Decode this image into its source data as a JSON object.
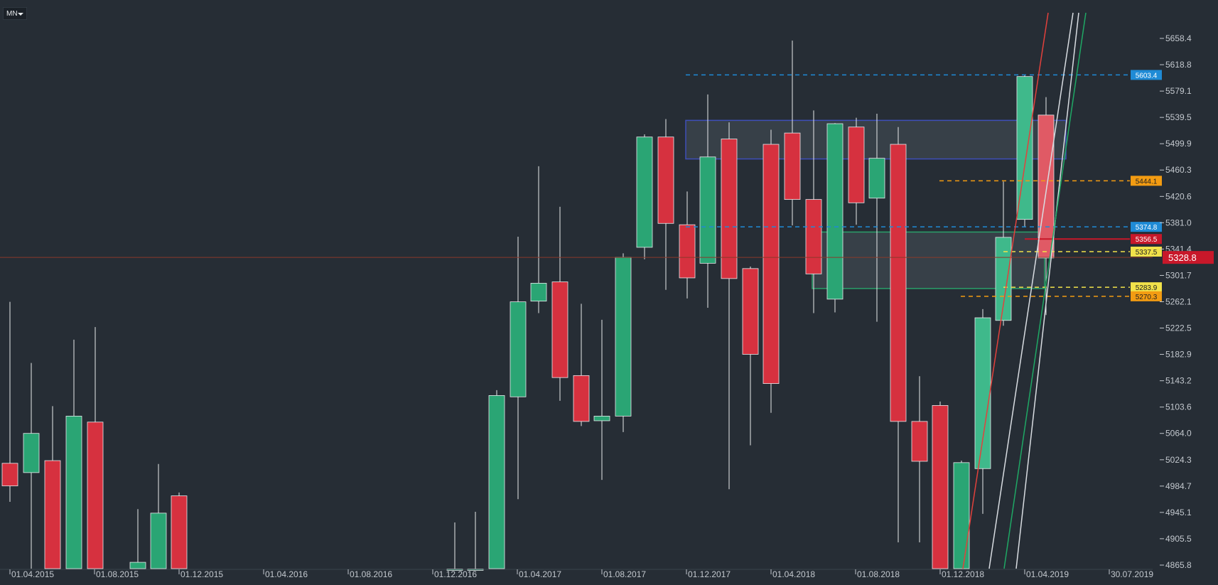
{
  "toolbar": {
    "timeframe": "MN"
  },
  "colors": {
    "background": "#262d35",
    "bull": "#2aa574",
    "bear": "#d6313f",
    "bull_light": "#3fb98b",
    "bear_light": "#e05a65",
    "blue_box": "#3f4fb8",
    "green_box": "#2aa06a",
    "dashed_blue": "#1f8bd6",
    "dashed_orange": "#f39c12",
    "dashed_yellow": "#f1e24a",
    "trend_red": "#e2413c",
    "trend_white": "#d9dde2",
    "trend_green": "#1fa865",
    "current_price": "#c8182a"
  },
  "chart_data": {
    "type": "candlestick",
    "timeframe": "MN",
    "ylim": [
      4865.8,
      5697.9
    ],
    "y_ticks": [
      "5658.4",
      "5618.8",
      "5579.1",
      "5539.5",
      "5499.9",
      "5460.3",
      "5420.6",
      "5381.0",
      "5341.4",
      "5301.7",
      "5262.1",
      "5222.5",
      "5182.9",
      "5143.2",
      "5103.6",
      "5064.0",
      "5024.3",
      "4984.7",
      "4945.1",
      "4905.5",
      "4865.8"
    ],
    "x_labels": [
      "01.04.2015",
      "01.08.2015",
      "01.12.2015",
      "01.04.2016",
      "01.08.2016",
      "01.12.2016",
      "01.04.2017",
      "01.08.2017",
      "01.12.2017",
      "01.04.2018",
      "01.08.2018",
      "01.12.2018",
      "01.04.2019",
      "30.07.2019"
    ],
    "candles": [
      {
        "date": "2015-03",
        "o": 5019,
        "h": 5262,
        "l": 4961,
        "c": 4985
      },
      {
        "date": "2015-04",
        "o": 5005,
        "h": 5170,
        "l": 4860,
        "c": 5064
      },
      {
        "date": "2015-05",
        "o": 5023,
        "h": 5105,
        "l": 4860,
        "c": 4860
      },
      {
        "date": "2015-06",
        "o": 4860,
        "h": 5205,
        "l": 4860,
        "c": 5090
      },
      {
        "date": "2015-07",
        "o": 5081,
        "h": 5224,
        "l": 4860,
        "c": 4860
      },
      {
        "date": "2015-10",
        "o": 4860,
        "h": 4950,
        "l": 4860,
        "c": 4870
      },
      {
        "date": "2015-11",
        "o": 4860,
        "h": 5018,
        "l": 4860,
        "c": 4944
      },
      {
        "date": "2015-12",
        "o": 4970,
        "h": 4975,
        "l": 4860,
        "c": 4860
      },
      {
        "date": "2016-11",
        "o": 4860,
        "h": 4930,
        "l": 4860,
        "c": 4860
      },
      {
        "date": "2016-12",
        "o": 4860,
        "h": 4946,
        "l": 4860,
        "c": 4860
      },
      {
        "date": "2017-01",
        "o": 4860,
        "h": 5129,
        "l": 4860,
        "c": 5121
      },
      {
        "date": "2017-02",
        "o": 5119,
        "h": 5360,
        "l": 4965,
        "c": 5262
      },
      {
        "date": "2017-03",
        "o": 5263,
        "h": 5466,
        "l": 5245,
        "c": 5290
      },
      {
        "date": "2017-04",
        "o": 5292,
        "h": 5405,
        "l": 5113,
        "c": 5148
      },
      {
        "date": "2017-05",
        "o": 5151,
        "h": 5259,
        "l": 5075,
        "c": 5082
      },
      {
        "date": "2017-06",
        "o": 5083,
        "h": 5235,
        "l": 4994,
        "c": 5090
      },
      {
        "date": "2017-07",
        "o": 5090,
        "h": 5335,
        "l": 5066,
        "c": 5329
      },
      {
        "date": "2017-08",
        "o": 5344,
        "h": 5514,
        "l": 5326,
        "c": 5510
      },
      {
        "date": "2017-09",
        "o": 5510,
        "h": 5537,
        "l": 5280,
        "c": 5380
      },
      {
        "date": "2017-10",
        "o": 5378,
        "h": 5428,
        "l": 5267,
        "c": 5298
      },
      {
        "date": "2017-11",
        "o": 5320,
        "h": 5574,
        "l": 5253,
        "c": 5480
      },
      {
        "date": "2017-12",
        "o": 5507,
        "h": 5532,
        "l": 4980,
        "c": 5297
      },
      {
        "date": "2018-01",
        "o": 5312,
        "h": 5315,
        "l": 5046,
        "c": 5183
      },
      {
        "date": "2018-02",
        "o": 5499,
        "h": 5521,
        "l": 5095,
        "c": 5139
      },
      {
        "date": "2018-03",
        "o": 5516,
        "h": 5655,
        "l": 5377,
        "c": 5416
      },
      {
        "date": "2018-04",
        "o": 5416,
        "h": 5550,
        "l": 5245,
        "c": 5304
      },
      {
        "date": "2018-05",
        "o": 5266,
        "h": 5531,
        "l": 5246,
        "c": 5530
      },
      {
        "date": "2018-06",
        "o": 5525,
        "h": 5539,
        "l": 5378,
        "c": 5411
      },
      {
        "date": "2018-07",
        "o": 5418,
        "h": 5545,
        "l": 5232,
        "c": 5478
      },
      {
        "date": "2018-08",
        "o": 5499,
        "h": 5525,
        "l": 4900,
        "c": 5082
      },
      {
        "date": "2018-09",
        "o": 5082,
        "h": 5150,
        "l": 4900,
        "c": 5022
      },
      {
        "date": "2018-10",
        "o": 5106,
        "h": 5112,
        "l": 4860,
        "c": 4860
      },
      {
        "date": "2018-11",
        "o": 4860,
        "h": 5023,
        "l": 4860,
        "c": 5020
      },
      {
        "date": "2018-12",
        "o": 5011,
        "h": 5251,
        "l": 4943,
        "c": 5238
      },
      {
        "date": "2018-01b",
        "o": 5234,
        "h": 5443,
        "l": 5226,
        "c": 5359
      },
      {
        "date": "2019-02",
        "o": 5386,
        "h": 5603,
        "l": 5375,
        "c": 5601
      },
      {
        "date": "2019-03",
        "o": 5543,
        "h": 5570,
        "l": 5242,
        "c": 5328
      }
    ],
    "levels": [
      {
        "label": "5603.4",
        "value": 5603.4,
        "color": "#1f8bd6",
        "style": "dashed",
        "tag": true
      },
      {
        "label": "5444.1",
        "value": 5444.1,
        "color": "#f39c12",
        "style": "dashed",
        "tag": true
      },
      {
        "label": "5374.8",
        "value": 5374.8,
        "color": "#1f8bd6",
        "style": "dashed",
        "tag": true
      },
      {
        "label": "5356.5",
        "value": 5356.5,
        "color": "#c8182a",
        "style": "solid",
        "tag": true
      },
      {
        "label": "5337.5",
        "value": 5337.5,
        "color": "#f1e24a",
        "style": "dashed",
        "tag": true
      },
      {
        "label": "5283.9",
        "value": 5283.9,
        "color": "#f1e24a",
        "style": "dashed",
        "tag": true
      },
      {
        "label": "5270.3",
        "value": 5270.3,
        "color": "#f39c12",
        "style": "dashed",
        "tag": true
      }
    ],
    "current_price": "5328.8",
    "zones": [
      {
        "name": "supply",
        "top": 5535,
        "bottom": 5477,
        "color": "#3f4fb8"
      },
      {
        "name": "demand",
        "top": 5367,
        "bottom": 5282,
        "color": "#2aa06a"
      }
    ]
  }
}
